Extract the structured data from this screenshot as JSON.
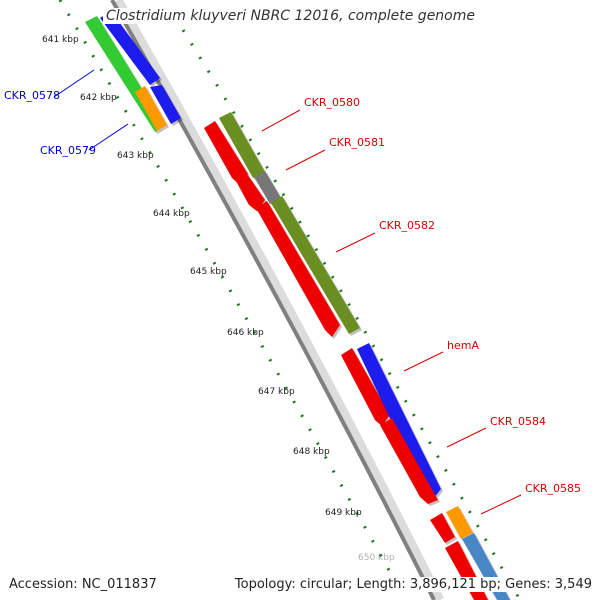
{
  "title": "Clostridium kluyveri NBRC 12016, complete genome",
  "footer": {
    "accession": "Accession: NC_011837",
    "summary": "Topology: circular; Length: 3,896,121 bp; Genes: 3,549"
  },
  "colors": {
    "background": "#ffffff",
    "backbone": "#808080",
    "tick": "#1a7a1a",
    "label_plus": "#d40000",
    "label_minus": "#0000cc"
  },
  "ticks": [
    {
      "label": "641 kbp"
    },
    {
      "label": "642 kbp"
    },
    {
      "label": "643 kbp"
    },
    {
      "label": "644 kbp"
    },
    {
      "label": "645 kbp"
    },
    {
      "label": "646 kbp"
    },
    {
      "label": "647 kbp"
    },
    {
      "label": "648 kbp"
    },
    {
      "label": "649 kbp"
    },
    {
      "label": "650 kbp"
    }
  ],
  "genes": [
    {
      "label": "CKR_0578",
      "strand": "minus"
    },
    {
      "label": "CKR_0579",
      "strand": "minus"
    },
    {
      "label": "CKR_0580",
      "strand": "plus"
    },
    {
      "label": "CKR_0581",
      "strand": "plus"
    },
    {
      "label": "CKR_0582",
      "strand": "plus"
    },
    {
      "label": "hemA",
      "strand": "plus"
    },
    {
      "label": "CKR_0584",
      "strand": "plus"
    },
    {
      "label": "CKR_0585",
      "strand": "plus"
    }
  ],
  "feature_colors": {
    "cog_green": "#33cc33",
    "cog_blue": "#1a1aee",
    "cog_orange": "#ff9900",
    "cog_red": "#ee0000",
    "cog_olive": "#6b8e23",
    "cog_gray": "#777777",
    "cog_steel": "#4a86c6"
  }
}
